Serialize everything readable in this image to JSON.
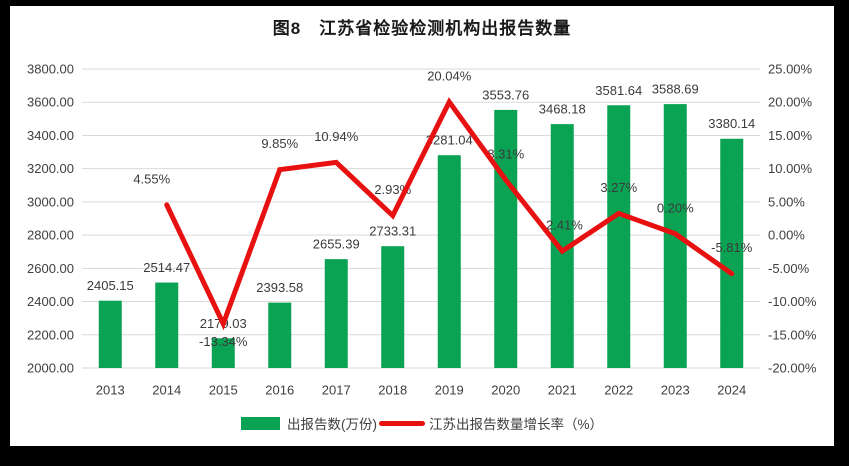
{
  "title": "图8　江苏省检验检测机构出报告数量",
  "legend": {
    "bar_label": "出报告数(万份)",
    "line_label": "江苏出报告数量增长率（%）"
  },
  "colors": {
    "bar": "#0aa253",
    "line": "#e81111",
    "grid": "#d9d9d9",
    "axis_text": "#404040",
    "label_text": "#3b3b3b",
    "panel_bg": "#ffffff",
    "frame_bg": "#000000"
  },
  "chart_data": {
    "type": "bar+line combo",
    "title": "图8 江苏省检验检测机构出报告数量",
    "categories": [
      "2013",
      "2014",
      "2015",
      "2016",
      "2017",
      "2018",
      "2019",
      "2020",
      "2021",
      "2022",
      "2023",
      "2024"
    ],
    "series": [
      {
        "name": "出报告数(万份)",
        "type": "bar",
        "axis": "left",
        "values": [
          2405.15,
          2514.47,
          2179.03,
          2393.58,
          2655.39,
          2733.31,
          3281.04,
          3553.76,
          3468.18,
          3581.64,
          3588.69,
          3380.14
        ],
        "labels": [
          "2405.15",
          "2514.47",
          "2179.03",
          "2393.58",
          "2655.39",
          "2733.31",
          "3281.04",
          "3553.76",
          "3468.18",
          "3581.64",
          "3588.69",
          "3380.14"
        ]
      },
      {
        "name": "江苏出报告数量增长率（%）",
        "type": "line",
        "axis": "right",
        "values": [
          null,
          4.55,
          -13.34,
          9.85,
          10.94,
          2.93,
          20.04,
          8.31,
          -2.41,
          3.27,
          0.2,
          -5.81
        ],
        "labels": [
          null,
          "4.55%",
          "-13.34%",
          "9.85%",
          "10.94%",
          "2.93%",
          "20.04%",
          "8.31%",
          "-2.41%",
          "3.27%",
          "0.20%",
          "-5.81%"
        ]
      }
    ],
    "left_axis": {
      "min": 2000,
      "max": 3800,
      "step": 200,
      "tick_labels": [
        "3800.00",
        "3600.00",
        "3400.00",
        "3200.00",
        "3000.00",
        "2800.00",
        "2600.00",
        "2400.00",
        "2200.00",
        "2000.00"
      ]
    },
    "right_axis": {
      "min": -20,
      "max": 25,
      "step": 5,
      "tick_labels": [
        "25.00%",
        "20.00%",
        "15.00%",
        "10.00%",
        "5.00%",
        "0.00%",
        "-5.00%",
        "-10.00%",
        "-15.00%",
        "-20.00%"
      ]
    },
    "grid": true,
    "legend_position": "bottom",
    "label_offsets": {
      "1": [
        -15,
        -26
      ],
      "2": [
        0,
        18
      ]
    }
  }
}
